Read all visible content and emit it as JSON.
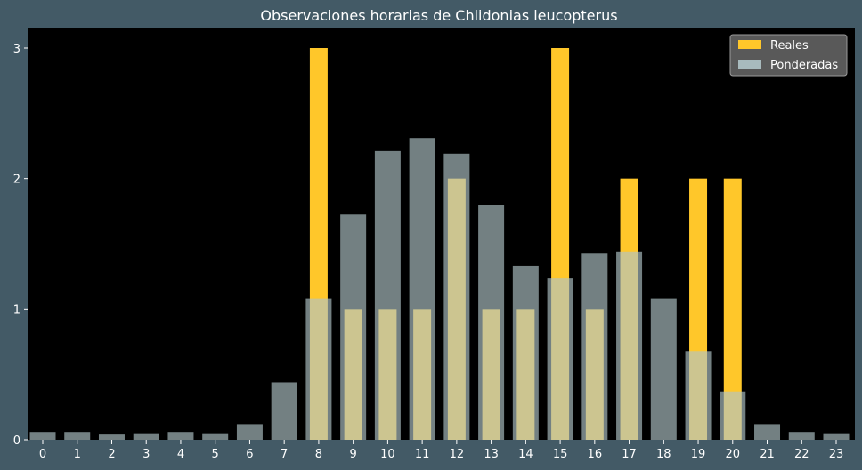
{
  "chart_data": {
    "type": "bar",
    "title": "Observaciones horarias de Chlidonias leucopterus",
    "xlabel": "",
    "ylabel": "",
    "categories": [
      "0",
      "1",
      "2",
      "3",
      "4",
      "5",
      "6",
      "7",
      "8",
      "9",
      "10",
      "11",
      "12",
      "13",
      "14",
      "15",
      "16",
      "17",
      "18",
      "19",
      "20",
      "21",
      "22",
      "23"
    ],
    "ylim": [
      0,
      3.15
    ],
    "yticks": [
      0,
      1,
      2,
      3
    ],
    "grid": false,
    "legend_position": "top-right",
    "series": [
      {
        "name": "Reales",
        "color": "#ffc72a",
        "values": [
          0,
          0,
          0,
          0,
          0,
          0,
          0,
          0,
          3,
          1,
          1,
          1,
          2,
          1,
          1,
          3,
          1,
          2,
          0,
          2,
          2,
          0,
          0,
          0
        ]
      },
      {
        "name": "Ponderadas",
        "color": "#b0c4c8",
        "opacity": 0.65,
        "values": [
          0.06,
          0.06,
          0.04,
          0.05,
          0.06,
          0.05,
          0.12,
          0.44,
          1.08,
          1.73,
          2.21,
          2.31,
          2.19,
          1.8,
          1.33,
          1.24,
          1.43,
          1.44,
          1.08,
          0.68,
          0.37,
          0.12,
          0.06,
          0.05
        ]
      }
    ],
    "colors": {
      "figure_background": "#435a66",
      "plot_background": "#000000",
      "legend_background": "#595959"
    }
  }
}
